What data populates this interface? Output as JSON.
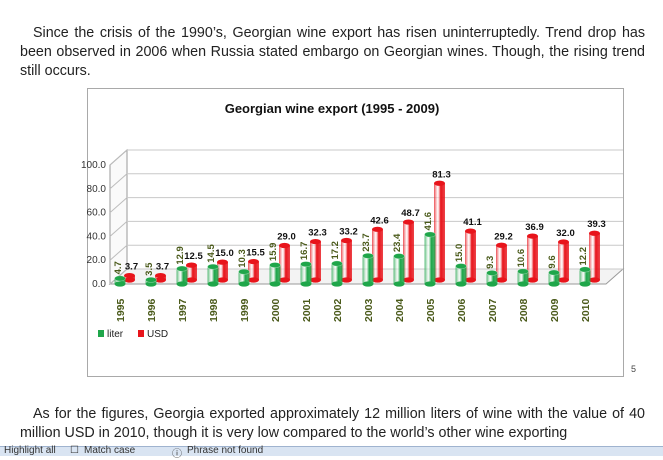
{
  "text": {
    "intro": "Since the crisis of the 1990’s, Georgian wine export has risen uninterruptedly. Trend drop has been observed in 2006 when Russia stated embargo on Georgian wines. Though, the rising trend still occurs.",
    "outro": "As for the figures, Georgia exported approximately 12 million liters of wine with the value of 40 million USD in 2010, though it is very low compared to the world’s other wine exporting",
    "page_marker": "5"
  },
  "find_bar": {
    "highlight_label": "Highlight all",
    "match_case_label": "Match case",
    "status_text": "Phrase not found"
  },
  "chart_data": {
    "type": "bar",
    "title": "Georgian wine export (1995 - 2009)",
    "categories": [
      "1995",
      "1996",
      "1997",
      "1998",
      "1999",
      "2000",
      "2001",
      "2002",
      "2003",
      "2004",
      "2005",
      "2006",
      "2007",
      "2008",
      "2009",
      "2010"
    ],
    "series": [
      {
        "name": "liter",
        "color": "#1fa64a",
        "values": [
          4.7,
          3.5,
          12.9,
          14.5,
          10.3,
          15.9,
          16.7,
          17.2,
          23.7,
          23.4,
          41.6,
          15.0,
          9.3,
          10.6,
          9.6,
          12.2
        ]
      },
      {
        "name": "USD",
        "color": "#e8141b",
        "values": [
          3.7,
          3.7,
          12.5,
          15.0,
          15.5,
          29.0,
          32.3,
          33.2,
          42.6,
          48.7,
          81.3,
          41.1,
          29.2,
          36.9,
          32.0,
          39.3
        ]
      }
    ],
    "value_labels": {
      "liter": [
        "4.7",
        "3.5",
        "12.9",
        "14.5",
        "10.3",
        "15.9",
        "16.7",
        "17.2",
        "23.7",
        "23.4",
        "41.6",
        "15.0",
        "9.3",
        "10.6",
        "9.6",
        "12.2"
      ],
      "USD": [
        "3.7",
        "3.7",
        "12.5",
        "15.0",
        "15.5",
        "29.0",
        "32.3",
        "33.2",
        "42.6",
        "48.7",
        "81.3",
        "41.1",
        "29.2",
        "36.9",
        "32.0",
        "39.3"
      ]
    },
    "y_ticks": [
      "100.0",
      "80.0",
      "60.0",
      "40.0",
      "20.0",
      "0.0"
    ],
    "ylim": [
      0,
      100
    ],
    "grid": true,
    "legend_position": "bottom-left",
    "style": "3d-cylinder"
  }
}
